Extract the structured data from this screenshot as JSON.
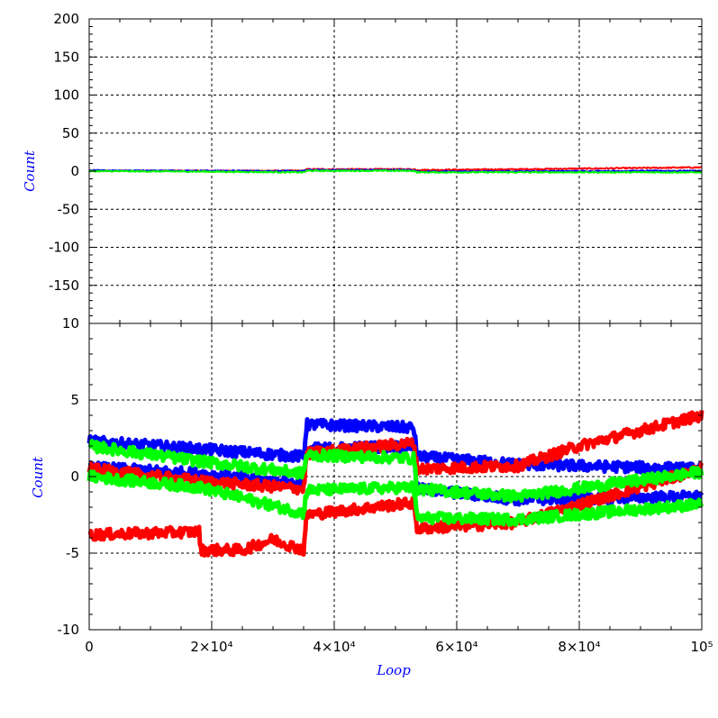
{
  "chart_data": [
    {
      "type": "line",
      "panel": "top",
      "xlabel": "",
      "ylabel": "Count",
      "xlim": [
        0,
        100000
      ],
      "ylim": [
        -200,
        200
      ],
      "yticks": [
        -200,
        -150,
        -100,
        -50,
        0,
        50,
        100,
        150,
        200
      ],
      "ytick_labels": [
        "",
        "-150",
        "-100",
        "-50",
        "0",
        "50",
        "100",
        "150",
        "200"
      ],
      "grid": true,
      "series": [
        {
          "color": "#ff0000",
          "x": [
            0,
            18000,
            35000,
            35500,
            53000,
            53500,
            70000,
            100000
          ],
          "values": [
            0.5,
            0.5,
            0.5,
            2.5,
            2.5,
            1.5,
            2.5,
            5
          ]
        },
        {
          "color": "#0000ff",
          "x": [
            0,
            18000,
            35000,
            35500,
            53000,
            53500,
            100000
          ],
          "values": [
            1,
            0.5,
            0,
            1.5,
            1.5,
            -0.5,
            0.5
          ]
        },
        {
          "color": "#00ff00",
          "x": [
            0,
            18000,
            35000,
            35500,
            53000,
            53500,
            100000
          ],
          "values": [
            0,
            -0.5,
            -1.5,
            0.5,
            0.5,
            -1.5,
            -1.5
          ]
        }
      ]
    },
    {
      "type": "line",
      "panel": "bottom",
      "xlabel": "Loop",
      "ylabel": "Count",
      "xlim": [
        0,
        100000
      ],
      "ylim": [
        -10,
        10
      ],
      "yticks": [
        -10,
        -5,
        0,
        5,
        10
      ],
      "ytick_labels": [
        "-10",
        "-5",
        "0",
        "5",
        "10"
      ],
      "xticks": [
        0,
        20000,
        40000,
        60000,
        80000,
        100000
      ],
      "xtick_labels": [
        "0",
        "2×10⁴",
        "4×10⁴",
        "6×10⁴",
        "8×10⁴",
        "10⁵"
      ],
      "grid": true,
      "series": [
        {
          "color": "#0000ff",
          "x": [
            0,
            18000,
            35000,
            35500,
            53000,
            53500,
            70000,
            100000
          ],
          "values": [
            2.3,
            1.8,
            1.3,
            3.4,
            3.2,
            1.3,
            0.8,
            0.5
          ]
        },
        {
          "color": "#0000ff",
          "x": [
            0,
            18000,
            35000,
            35500,
            53000,
            53500,
            70000,
            100000
          ],
          "values": [
            0.6,
            0.2,
            -0.5,
            1.8,
            2.0,
            -0.8,
            -1.5,
            -1.3
          ]
        },
        {
          "color": "#ff0000",
          "x": [
            0,
            18000,
            35000,
            35500,
            53000,
            53500,
            70000,
            80000,
            100000
          ],
          "values": [
            0.5,
            -0.3,
            -0.8,
            1.5,
            2.2,
            0.5,
            0.7,
            2.0,
            4.0
          ]
        },
        {
          "color": "#ff0000",
          "x": [
            0,
            18000,
            18200,
            25000,
            30000,
            35000,
            35500,
            53000,
            53500,
            70000,
            100000
          ],
          "values": [
            -3.8,
            -3.6,
            -4.8,
            -4.8,
            -4.1,
            -4.8,
            -2.5,
            -1.7,
            -3.4,
            -3.0,
            0.5
          ]
        },
        {
          "color": "#00ff00",
          "x": [
            0,
            18000,
            35000,
            35500,
            53000,
            53500,
            70000,
            100000
          ],
          "values": [
            2.0,
            1.0,
            0.2,
            1.4,
            1.2,
            -0.8,
            -1.3,
            0.3
          ]
        },
        {
          "color": "#00ff00",
          "x": [
            0,
            18000,
            35000,
            35500,
            53000,
            53500,
            70000,
            100000
          ],
          "values": [
            0.0,
            -0.7,
            -2.4,
            -0.9,
            -0.7,
            -2.7,
            -2.8,
            -1.8
          ]
        }
      ]
    }
  ]
}
